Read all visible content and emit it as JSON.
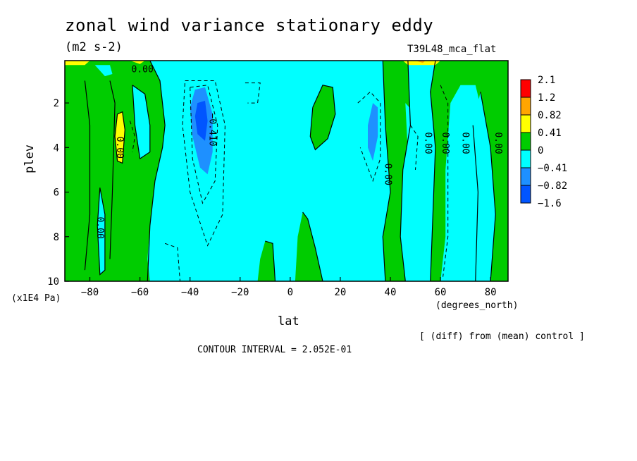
{
  "title": "zonal wind variance stationary eddy",
  "units": "(m2 s-2)",
  "run_label": "T39L48_mca_flat",
  "y_axis_label": "plev",
  "y_axis_units": "(x1E4 Pa)",
  "x_axis_label": "lat",
  "x_axis_units": "(degrees_north)",
  "diff_note": "[ (diff) from (mean) control ]",
  "contour_interval": "CONTOUR INTERVAL = 2.052E-01",
  "chart_data": {
    "type": "heatmap",
    "title": "zonal wind variance stationary eddy",
    "xlabel": "lat",
    "ylabel": "plev",
    "xlim": [
      -90,
      87
    ],
    "ylim": [
      10,
      0.1
    ],
    "x_ticks": [
      -80,
      -60,
      -40,
      -20,
      0,
      20,
      40,
      60,
      80
    ],
    "x_tick_labels": [
      "−80",
      "−60",
      "−40",
      "−20",
      "0",
      "20",
      "40",
      "60",
      "80"
    ],
    "y_ticks": [
      2,
      4,
      6,
      8,
      10
    ],
    "y_tick_labels": [
      "2",
      "4",
      "6",
      "8",
      "10"
    ],
    "levels": [
      {
        "label": "2.1",
        "color": "#ff0000"
      },
      {
        "label": "1.2",
        "color": "#ffa500"
      },
      {
        "label": "0.82",
        "color": "#ffff00"
      },
      {
        "label": "0.41",
        "color": "#00cc00"
      },
      {
        "label": "0",
        "color": "#00ffff"
      },
      {
        "label": "−0.41",
        "color": "#1e90ff"
      },
      {
        "label": "−0.82",
        "color": "#0055ff"
      },
      {
        "label": "−1.6",
        "color": ""
      }
    ],
    "legend_colors": [
      "#ff0000",
      "#ffa500",
      "#ffff00",
      "#00cc00",
      "#00ffff",
      "#1e90ff",
      "#0055ff"
    ],
    "contour_labels": [
      "0.00",
      "0.00",
      "0.00",
      "−0.410",
      "0.00",
      "0.00",
      "0.00",
      "0.00",
      "0.00"
    ],
    "regions": [
      {
        "value_band": "0 to 0.41",
        "color": "#00cc00",
        "lat_range": [
          -90,
          -45
        ],
        "plev_range": [
          0.1,
          10
        ]
      },
      {
        "value_band": "-0.41 to 0",
        "color": "#00ffff",
        "lat_range": [
          -60,
          45
        ],
        "plev_range": [
          0.1,
          10
        ]
      },
      {
        "value_band": "0.41 to 0.82",
        "color": "#ffff00",
        "lat": -68,
        "plev_range": [
          2.5,
          4.7
        ]
      },
      {
        "value_band": "-0.82 to -0.41",
        "color": "#1e90ff",
        "lat": -36,
        "plev_range": [
          1.5,
          5
        ]
      },
      {
        "value_band": "-0.82 to -0.41",
        "color": "#1e90ff",
        "lat": 33,
        "plev_range": [
          2,
          4.5
        ]
      },
      {
        "value_band": "0 to 0.41",
        "color": "#00cc00",
        "lat_range": [
          8,
          18
        ],
        "plev_range": [
          1.2,
          4
        ]
      },
      {
        "value_band": "0 to 0.41",
        "color": "#00cc00",
        "lat_range": [
          37,
          47
        ],
        "plev_range": [
          0.1,
          10
        ]
      },
      {
        "value_band": "0 to 0.41",
        "color": "#00cc00",
        "lat_range": [
          60,
          87
        ],
        "plev_range": [
          0.1,
          10
        ]
      },
      {
        "value_band": "0 to 0.41",
        "color": "#00cc00",
        "lat_range": [
          0,
          13
        ],
        "plev_range": [
          7,
          10
        ]
      },
      {
        "value_band": "0 to 0.41",
        "color": "#00cc00",
        "lat_range": [
          -13,
          -6
        ],
        "plev_range": [
          8.3,
          10
        ]
      }
    ]
  }
}
